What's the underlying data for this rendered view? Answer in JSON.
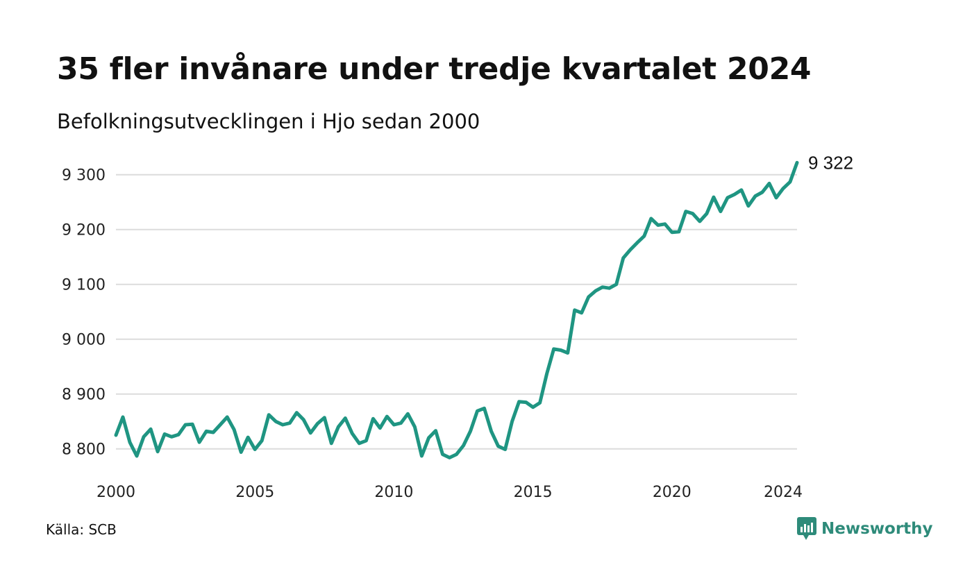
{
  "header": {
    "title": "35 fler invånare under tredje kvartalet 2024",
    "subtitle": "Befolkningsutvecklingen i Hjo sedan 2000"
  },
  "footer": {
    "source": "Källa: SCB",
    "brand": "Newsworthy"
  },
  "colors": {
    "line": "#1f9582",
    "grid": "#dcdcdc",
    "brand": "#2e8b7a"
  },
  "icons": {
    "brand_logo": "newsworthy-logo-icon"
  },
  "chart_data": {
    "type": "line",
    "title": "35 fler invånare under tredje kvartalet 2024",
    "subtitle": "Befolkningsutvecklingen i Hjo sedan 2000",
    "x_start": 2000,
    "x_step": 0.25,
    "xlim": [
      2000,
      2024.5
    ],
    "ylim": [
      8768,
      9330
    ],
    "y_ticks": [
      8800,
      8900,
      9000,
      9100,
      9200,
      9300
    ],
    "y_tick_labels": [
      "8 800",
      "8 900",
      "9 000",
      "9 100",
      "9 200",
      "9 300"
    ],
    "x_ticks": [
      2000,
      2005,
      2010,
      2015,
      2020,
      2024
    ],
    "x_tick_labels": [
      "2000",
      "2005",
      "2010",
      "2015",
      "2020",
      "2024"
    ],
    "grid": true,
    "end_label": "9 322",
    "series": [
      {
        "values": [
          8825,
          8858,
          8812,
          8787,
          8822,
          8836,
          8795,
          8827,
          8822,
          8826,
          8844,
          8845,
          8812,
          8832,
          8830,
          8844,
          8858,
          8835,
          8794,
          8821,
          8799,
          8815,
          8862,
          8850,
          8844,
          8847,
          8866,
          8853,
          8829,
          8846,
          8857,
          8810,
          8840,
          8856,
          8828,
          8810,
          8815,
          8855,
          8838,
          8859,
          8844,
          8847,
          8864,
          8840,
          8787,
          8820,
          8833,
          8790,
          8784,
          8790,
          8806,
          8832,
          8869,
          8874,
          8832,
          8805,
          8799,
          8850,
          8886,
          8885,
          8876,
          8884,
          8937,
          8982,
          8980,
          8975,
          9053,
          9048,
          9077,
          9088,
          9095,
          9093,
          9100,
          9148,
          9163,
          9176,
          9188,
          9220,
          9208,
          9210,
          9195,
          9196,
          9233,
          9229,
          9215,
          9229,
          9259,
          9233,
          9258,
          9264,
          9272,
          9243,
          9261,
          9268,
          9284,
          9258,
          9275,
          9287,
          9322
        ]
      }
    ]
  }
}
